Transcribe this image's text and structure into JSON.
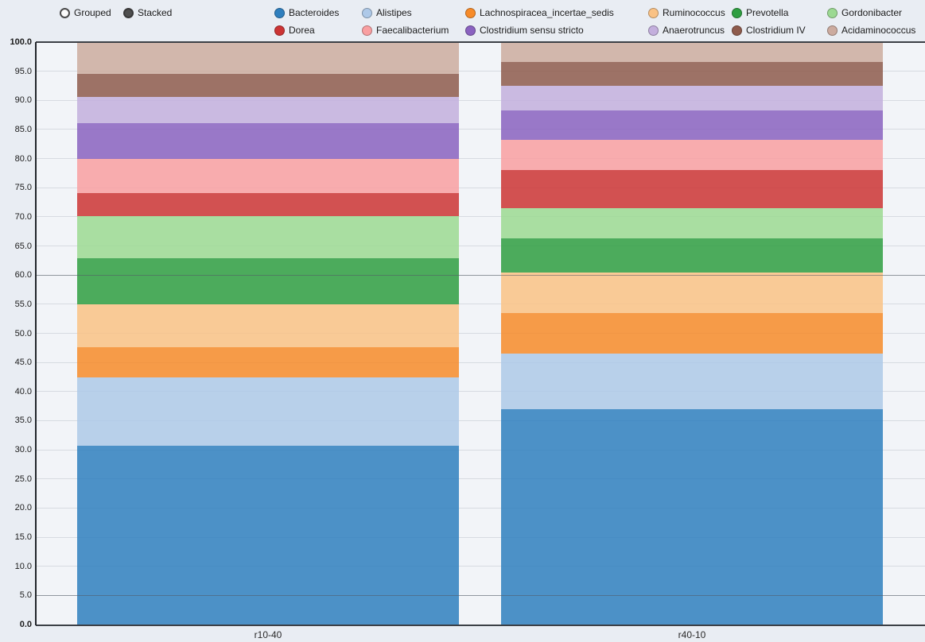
{
  "controls": {
    "grouped_label": "Grouped",
    "stacked_label": "Stacked",
    "selected_mode": "Stacked"
  },
  "chart_data": {
    "type": "bar",
    "stacked": true,
    "title": "",
    "xlabel": "",
    "ylabel": "",
    "ylim": [
      0,
      100
    ],
    "ytick_step": 5,
    "ytick_labels": [
      "0.0",
      "5.0",
      "10.0",
      "15.0",
      "20.0",
      "25.0",
      "30.0",
      "35.0",
      "40.0",
      "45.0",
      "50.0",
      "55.0",
      "60.0",
      "65.0",
      "70.0",
      "75.0",
      "80.0",
      "85.0",
      "90.0",
      "95.0",
      "100.0"
    ],
    "highlight_gridlines": [
      60,
      5
    ],
    "grid": true,
    "legend_position": "top",
    "categories": [
      "r10-40",
      "r40-10"
    ],
    "series": [
      {
        "name": "Bacteroides",
        "color": "#2f7fbe",
        "values": [
          30.7,
          37.0
        ]
      },
      {
        "name": "Alistipes",
        "color": "#aec9e8",
        "values": [
          11.7,
          9.5
        ]
      },
      {
        "name": "Lachnospiracea_incertae_sedis",
        "color": "#f78b29",
        "values": [
          5.2,
          7.0
        ]
      },
      {
        "name": "Ruminococcus",
        "color": "#fac285",
        "values": [
          7.4,
          7.0
        ]
      },
      {
        "name": "Prevotella",
        "color": "#2f9e41",
        "values": [
          7.9,
          5.8
        ]
      },
      {
        "name": "Gordonibacter",
        "color": "#9cd992",
        "values": [
          7.2,
          5.2
        ]
      },
      {
        "name": "Dorea",
        "color": "#cc3434",
        "values": [
          4.0,
          6.5
        ]
      },
      {
        "name": "Faecalibacterium",
        "color": "#f99fa1",
        "values": [
          5.9,
          5.2
        ]
      },
      {
        "name": "Clostridium sensu stricto",
        "color": "#8a62c0",
        "values": [
          6.1,
          5.0
        ]
      },
      {
        "name": "Anaerotruncus",
        "color": "#c3afdd",
        "values": [
          4.5,
          4.3
        ]
      },
      {
        "name": "Clostridium IV",
        "color": "#8e5b4c",
        "values": [
          3.9,
          4.1
        ]
      },
      {
        "name": "Acidaminococcus",
        "color": "#ccab9f",
        "values": [
          5.5,
          3.4
        ]
      }
    ]
  }
}
